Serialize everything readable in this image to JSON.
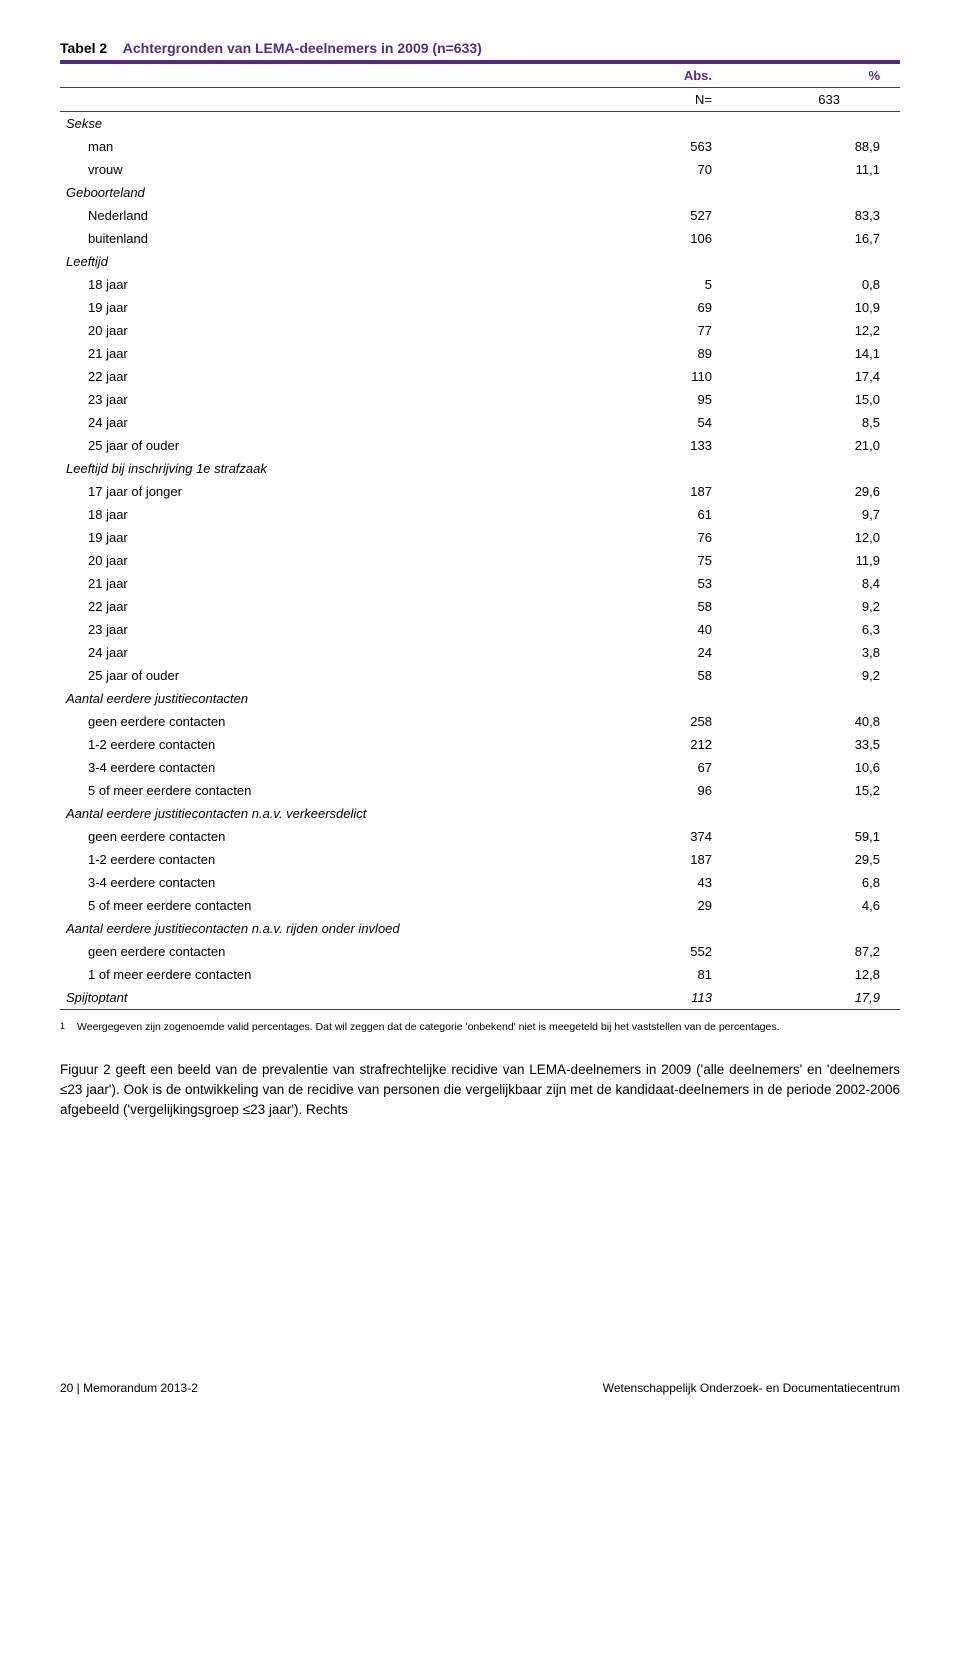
{
  "colors": {
    "accent": "#5a2a82",
    "text": "#000000",
    "background": "#ffffff"
  },
  "title": {
    "prefix": "Tabel 2",
    "rest": "Achtergronden van LEMA-deelnemers in 2009 (n=633)"
  },
  "header": {
    "abs": "Abs.",
    "pct": "%"
  },
  "n_row": {
    "label": "N=",
    "value": "633"
  },
  "sections": [
    {
      "label": "Sekse",
      "rows": [
        {
          "label": "man",
          "abs": "563",
          "pct": "88,9"
        },
        {
          "label": "vrouw",
          "abs": "70",
          "pct": "11,1"
        }
      ]
    },
    {
      "label": "Geboorteland",
      "rows": [
        {
          "label": "Nederland",
          "abs": "527",
          "pct": "83,3"
        },
        {
          "label": "buitenland",
          "abs": "106",
          "pct": "16,7"
        }
      ]
    },
    {
      "label": "Leeftijd",
      "rows": [
        {
          "label": "18 jaar",
          "abs": "5",
          "pct": "0,8"
        },
        {
          "label": "19 jaar",
          "abs": "69",
          "pct": "10,9"
        },
        {
          "label": "20 jaar",
          "abs": "77",
          "pct": "12,2"
        },
        {
          "label": "21 jaar",
          "abs": "89",
          "pct": "14,1"
        },
        {
          "label": "22 jaar",
          "abs": "110",
          "pct": "17,4"
        },
        {
          "label": "23 jaar",
          "abs": "95",
          "pct": "15,0"
        },
        {
          "label": "24 jaar",
          "abs": "54",
          "pct": "8,5"
        },
        {
          "label": "25 jaar of ouder",
          "abs": "133",
          "pct": "21,0"
        }
      ]
    },
    {
      "label": "Leeftijd bij inschrijving 1e strafzaak",
      "rows": [
        {
          "label": "17 jaar of jonger",
          "abs": "187",
          "pct": "29,6"
        },
        {
          "label": "18 jaar",
          "abs": "61",
          "pct": "9,7"
        },
        {
          "label": "19 jaar",
          "abs": "76",
          "pct": "12,0"
        },
        {
          "label": "20 jaar",
          "abs": "75",
          "pct": "11,9"
        },
        {
          "label": "21 jaar",
          "abs": "53",
          "pct": "8,4"
        },
        {
          "label": "22 jaar",
          "abs": "58",
          "pct": "9,2"
        },
        {
          "label": "23 jaar",
          "abs": "40",
          "pct": "6,3"
        },
        {
          "label": "24 jaar",
          "abs": "24",
          "pct": "3,8"
        },
        {
          "label": "25 jaar of ouder",
          "abs": "58",
          "pct": "9,2"
        }
      ]
    },
    {
      "label": "Aantal eerdere justitiecontacten",
      "rows": [
        {
          "label": "geen eerdere contacten",
          "abs": "258",
          "pct": "40,8"
        },
        {
          "label": "1-2 eerdere contacten",
          "abs": "212",
          "pct": "33,5"
        },
        {
          "label": "3-4 eerdere contacten",
          "abs": "67",
          "pct": "10,6"
        },
        {
          "label": "5 of meer eerdere contacten",
          "abs": "96",
          "pct": "15,2"
        }
      ]
    },
    {
      "label": "Aantal eerdere justitiecontacten n.a.v. verkeersdelict",
      "rows": [
        {
          "label": "geen eerdere contacten",
          "abs": "374",
          "pct": "59,1"
        },
        {
          "label": "1-2 eerdere contacten",
          "abs": "187",
          "pct": "29,5"
        },
        {
          "label": "3-4 eerdere contacten",
          "abs": "43",
          "pct": "6,8"
        },
        {
          "label": "5 of meer eerdere contacten",
          "abs": "29",
          "pct": "4,6"
        }
      ]
    },
    {
      "label": "Aantal eerdere justitiecontacten n.a.v. rijden onder invloed",
      "rows": [
        {
          "label": "geen eerdere contacten",
          "abs": "552",
          "pct": "87,2"
        },
        {
          "label": "1 of meer eerdere contacten",
          "abs": "81",
          "pct": "12,8"
        }
      ]
    }
  ],
  "final_row": {
    "label": "Spijtoptant",
    "abs": "113",
    "pct": "17,9"
  },
  "footnote": {
    "num": "1",
    "text": "Weergegeven zijn zogenoemde valid percentages. Dat wil zeggen dat de categorie 'onbekend' niet is meegeteld bij het vaststellen van de percentages."
  },
  "body": "Figuur 2 geeft een beeld van de prevalentie van strafrechtelijke recidive van LEMA-deelnemers in 2009 ('alle deelnemers' en 'deelnemers ≤23 jaar'). Ook is de ontwikkeling van de recidive van personen die vergelijkbaar zijn met de kandidaat-deelnemers in de periode 2002-2006 afgebeeld ('vergelijkingsgroep ≤23 jaar'). Rechts",
  "footer": {
    "left": "20 | Memorandum 2013-2",
    "right": "Wetenschappelijk Onderzoek- en Documentatiecentrum"
  }
}
